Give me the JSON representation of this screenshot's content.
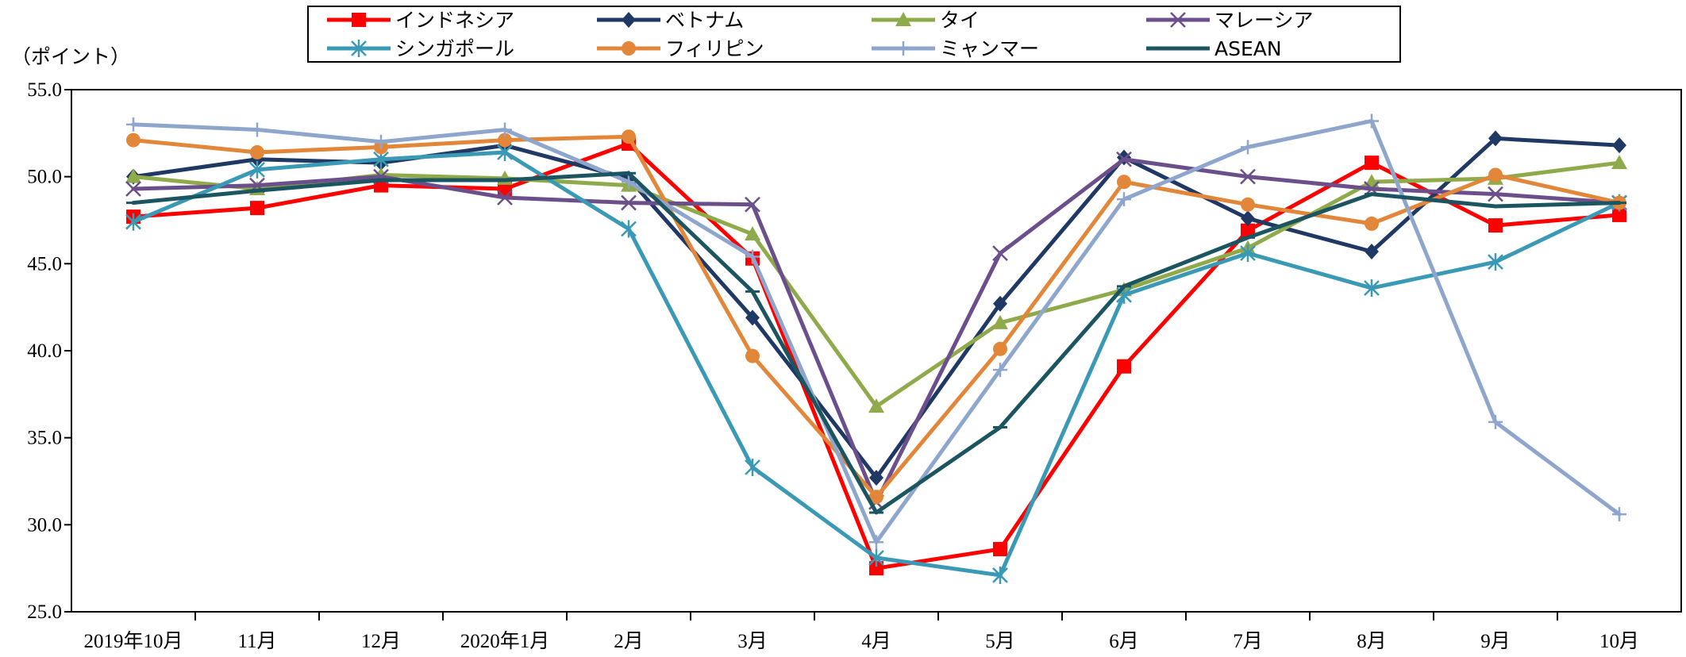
{
  "chart_data": {
    "type": "line",
    "ylabel": "（ポイント）",
    "ylim": [
      25,
      55
    ],
    "yticks": [
      "55.0",
      "50.0",
      "45.0",
      "40.0",
      "35.0",
      "30.0",
      "25.0"
    ],
    "categories": [
      "2019年10月",
      "11月",
      "12月",
      "2020年1月",
      "2月",
      "3月",
      "4月",
      "5月",
      "6月",
      "7月",
      "8月",
      "9月",
      "10月"
    ],
    "legend": "top",
    "series": [
      {
        "name": "インドネシア",
        "color": "#ff0000",
        "marker": "square",
        "values": [
          47.7,
          48.2,
          49.5,
          49.3,
          51.9,
          45.3,
          27.5,
          28.6,
          39.1,
          46.9,
          50.8,
          47.2,
          47.8
        ]
      },
      {
        "name": "ベトナム",
        "color": "#1f3864",
        "marker": "diamond",
        "values": [
          50.0,
          51.0,
          50.8,
          51.8,
          49.9,
          41.9,
          32.7,
          42.7,
          51.1,
          47.6,
          45.7,
          52.2,
          51.8
        ]
      },
      {
        "name": "タイ",
        "color": "#8faa4a",
        "marker": "triangle",
        "values": [
          50.0,
          49.3,
          50.1,
          49.9,
          49.5,
          46.7,
          36.8,
          41.6,
          43.5,
          45.9,
          49.7,
          49.9,
          50.8
        ]
      },
      {
        "name": "マレーシア",
        "color": "#6b4f8b",
        "marker": "x",
        "values": [
          49.3,
          49.5,
          50.0,
          48.8,
          48.5,
          48.4,
          31.3,
          45.6,
          51.0,
          50.0,
          49.3,
          49.0,
          48.5
        ]
      },
      {
        "name": "シンガポール",
        "color": "#3a99b5",
        "marker": "asterisk",
        "values": [
          47.4,
          50.4,
          51.0,
          51.4,
          47.0,
          33.3,
          28.1,
          27.1,
          43.2,
          45.6,
          43.6,
          45.1,
          48.5
        ]
      },
      {
        "name": "フィリピン",
        "color": "#e2873a",
        "marker": "circle",
        "values": [
          52.1,
          51.4,
          51.7,
          52.1,
          52.3,
          39.7,
          31.6,
          40.1,
          49.7,
          48.4,
          47.3,
          50.1,
          48.5
        ]
      },
      {
        "name": "ミャンマー",
        "color": "#8fa6cc",
        "marker": "plus",
        "values": [
          53.0,
          52.7,
          52.0,
          52.7,
          49.7,
          45.4,
          29.0,
          38.9,
          48.7,
          51.7,
          53.2,
          35.9,
          30.6
        ]
      },
      {
        "name": "ASEAN",
        "color": "#1b5560",
        "marker": "dash",
        "values": [
          48.5,
          49.2,
          49.8,
          49.8,
          50.2,
          43.4,
          30.7,
          35.6,
          43.7,
          46.5,
          49.0,
          48.3,
          48.5
        ]
      }
    ]
  }
}
